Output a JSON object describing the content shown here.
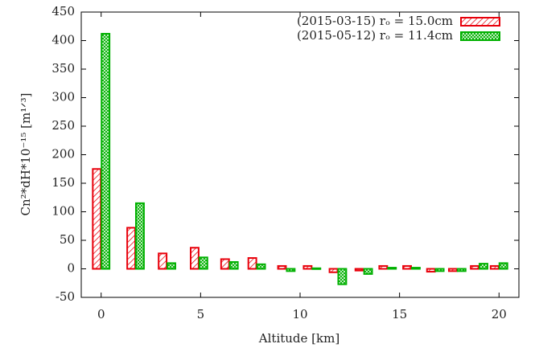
{
  "chart_data": {
    "type": "bar",
    "xlabel": "Altitude [km]",
    "ylabel": "Cn²*dH*10⁻¹⁵ [m¹ᐟ³]",
    "x": [
      0,
      1.73,
      3.31,
      4.92,
      6.45,
      7.82,
      9.31,
      10.6,
      11.9,
      13.2,
      14.4,
      15.6,
      16.8,
      17.9,
      19.0,
      20.0
    ],
    "series": [
      {
        "name": "(2015-03-15) rₒ = 15.0cm",
        "color": "#e8000b",
        "pattern": "hatch",
        "values": [
          175,
          72,
          27,
          37,
          17,
          19,
          5,
          5,
          -6,
          -3,
          5,
          5,
          -5,
          -4,
          5,
          5
        ]
      },
      {
        "name": "(2015-05-12) rₒ = 11.4cm",
        "color": "#00b000",
        "pattern": "crosshatch",
        "values": [
          412,
          115,
          10,
          20,
          12,
          8,
          -4,
          1,
          -27,
          -9,
          2,
          2,
          -4,
          -4,
          9,
          10
        ]
      }
    ],
    "xlim": [
      -1,
      21
    ],
    "xticks": [
      0,
      5,
      10,
      15,
      20
    ],
    "ylim": [
      -50,
      450
    ],
    "yticks": [
      -50,
      0,
      50,
      100,
      150,
      200,
      250,
      300,
      350,
      400,
      450
    ],
    "legend": "top-right"
  }
}
